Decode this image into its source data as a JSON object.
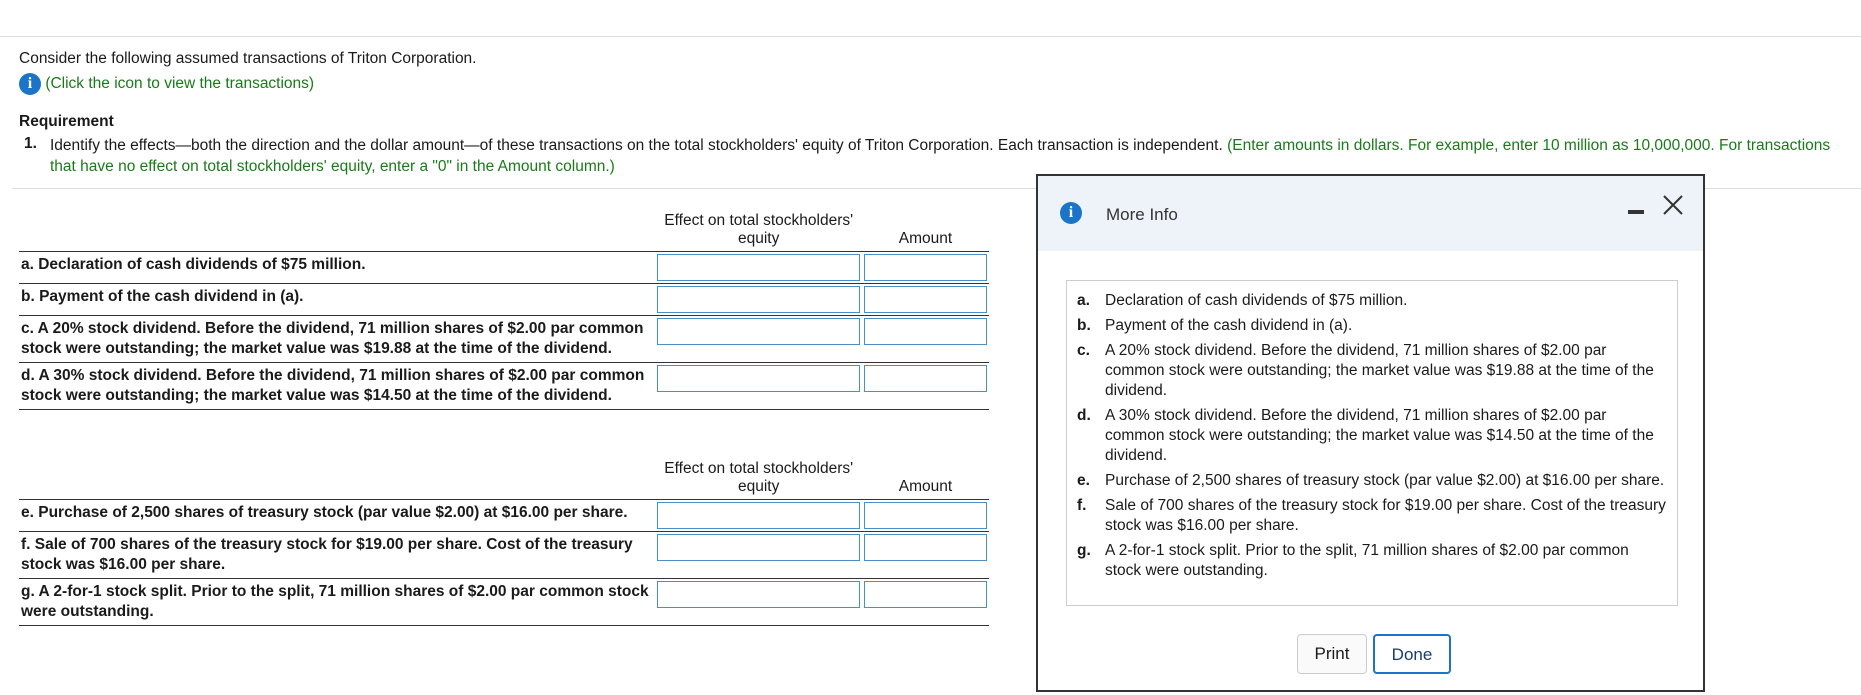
{
  "intro": "Consider the following assumed transactions of Triton Corporation.",
  "info_link": "(Click the icon to view the transactions)",
  "requirement": {
    "heading": "Requirement",
    "number": "1.",
    "text": "Identify the effects—both the direction and the dollar amount—of these transactions on the total stockholders' equity of Triton Corporation. Each transaction is independent.",
    "hint": "(Enter amounts in dollars. For example, enter 10 million as 10,000,000. For transactions that have no effect on total stockholders' equity, enter a \"0\" in the Amount column.)"
  },
  "tables": [
    {
      "headers": [
        "Effect on total stockholders' equity",
        "Amount"
      ],
      "rows": [
        "a. Declaration of cash dividends of $75 million.",
        "b. Payment of the cash dividend in (a).",
        "c. A 20% stock dividend. Before the dividend, 71 million shares of $2.00 par common stock were outstanding; the market value was $19.88 at the time of the dividend.",
        "d. A 30% stock dividend. Before the dividend, 71 million shares of $2.00 par common stock were outstanding; the market value was $14.50 at the time of the dividend."
      ]
    },
    {
      "headers": [
        "Effect on total stockholders' equity",
        "Amount"
      ],
      "rows": [
        "e. Purchase of 2,500 shares of treasury stock (par value $2.00) at $16.00 per share.",
        "f. Sale of 700 shares of the treasury stock for $19.00 per share. Cost of the treasury stock was $16.00 per share.",
        "g. A 2-for-1 stock split. Prior to the split, 71 million shares of $2.00 par common stock were outstanding."
      ]
    }
  ],
  "modal": {
    "title": "More Info",
    "items": [
      {
        "letter": "a.",
        "text": "Declaration of cash dividends of $75 million."
      },
      {
        "letter": "b.",
        "text": "Payment of the cash dividend in (a)."
      },
      {
        "letter": "c.",
        "text": "A 20% stock dividend. Before the dividend, 71 million shares of $2.00 par common stock were outstanding; the market value was $19.88 at the time of the dividend."
      },
      {
        "letter": "d.",
        "text": "A 30% stock dividend. Before the dividend, 71 million shares of $2.00 par common stock were outstanding; the market value was $14.50 at the time of the dividend."
      },
      {
        "letter": "e.",
        "text": "Purchase of 2,500 shares of treasury stock (par value $2.00) at $16.00 per share."
      },
      {
        "letter": "f.",
        "text": "Sale of 700 shares of the treasury stock for $19.00 per share. Cost of the treasury stock was $16.00 per share."
      },
      {
        "letter": "g.",
        "text": "A 2-for-1 stock split. Prior to the split, 71 million shares of $2.00 par common stock were outstanding."
      }
    ],
    "buttons": [
      "Print",
      "Done"
    ]
  }
}
